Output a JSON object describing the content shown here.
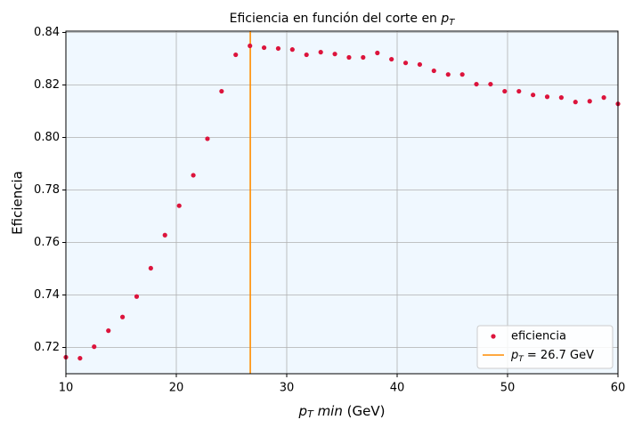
{
  "chart_data": {
    "type": "scatter",
    "title": [
      "Eficiencia en función del corte en ",
      "p",
      "T"
    ],
    "xlabel": [
      "p",
      "T",
      " min",
      " (GeV)"
    ],
    "ylabel": "Eficiencia",
    "x": [
      10,
      11.28,
      12.56,
      13.85,
      15.13,
      16.41,
      17.69,
      18.97,
      20.26,
      21.54,
      22.82,
      24.1,
      25.38,
      26.67,
      27.95,
      29.23,
      30.51,
      31.79,
      33.08,
      34.36,
      35.64,
      36.92,
      38.21,
      39.49,
      40.77,
      42.05,
      43.33,
      44.62,
      45.9,
      47.18,
      48.46,
      49.74,
      51.03,
      52.31,
      53.59,
      54.87,
      56.15,
      57.44,
      58.72,
      60
    ],
    "series": [
      {
        "name": "eficiencia",
        "color": "#dc143c",
        "values": [
          0.7163,
          0.7159,
          0.7203,
          0.7264,
          0.7316,
          0.7394,
          0.7502,
          0.7628,
          0.774,
          0.7856,
          0.7995,
          0.8176,
          0.8315,
          0.8349,
          0.8342,
          0.8339,
          0.8335,
          0.8315,
          0.8325,
          0.8318,
          0.8305,
          0.8305,
          0.8322,
          0.8298,
          0.8284,
          0.8278,
          0.8254,
          0.824,
          0.824,
          0.8203,
          0.8203,
          0.8176,
          0.8176,
          0.8162,
          0.8155,
          0.8152,
          0.8135,
          0.8138,
          0.8152,
          0.8128
        ]
      }
    ],
    "vline": {
      "value": 26.7,
      "color": "#ff8c00",
      "name": [
        "p",
        "T",
        " = 26.7 GeV"
      ]
    },
    "xlim": [
      10,
      60
    ],
    "xticks": [
      10,
      20,
      30,
      40,
      50,
      60
    ],
    "ylim": [
      0.71,
      0.8405
    ],
    "yticks": [
      0.72,
      0.74,
      0.76,
      0.78,
      {
        "value": 0.8,
        "label": "0.80"
      },
      0.82,
      0.84
    ],
    "grid": true,
    "background": "#f0f8ff",
    "legend": "lower right"
  }
}
